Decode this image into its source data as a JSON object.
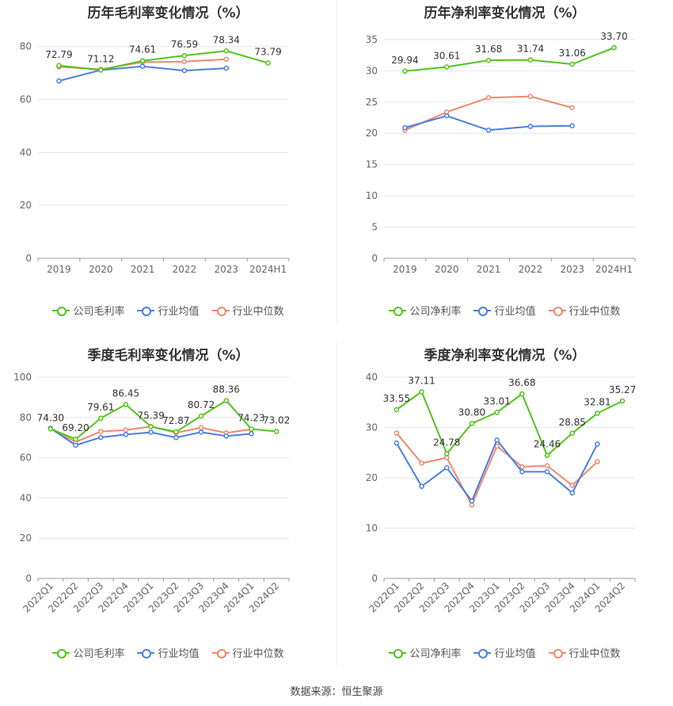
{
  "colors": {
    "company": "#52c41a",
    "industry_avg": "#4a7fe0",
    "industry_median": "#f0886a",
    "grid": "#e6e6e6",
    "axis": "#999999"
  },
  "source_text": "数据来源：恒生聚源",
  "chart_data": [
    {
      "type": "line",
      "title": "历年毛利率变化情况（%）",
      "categories": [
        "2019",
        "2020",
        "2021",
        "2022",
        "2023",
        "2024H1"
      ],
      "ylim": [
        0,
        85
      ],
      "yticks": [
        0,
        20,
        40,
        60,
        80
      ],
      "grid": true,
      "legend_position": "bottom",
      "x_rotated": false,
      "series": [
        {
          "name": "公司毛利率",
          "values": [
            72.79,
            71.12,
            74.61,
            76.59,
            78.34,
            73.79
          ],
          "labels": [
            "72.79",
            "71.12",
            "74.61",
            "76.59",
            "78.34",
            "73.79"
          ]
        },
        {
          "name": "行业均值",
          "values": [
            67.0,
            71.1,
            72.5,
            70.9,
            71.8,
            null
          ]
        },
        {
          "name": "行业中位数",
          "values": [
            72.3,
            71.4,
            74.1,
            74.3,
            75.2,
            null
          ]
        }
      ]
    },
    {
      "type": "line",
      "title": "历年净利率变化情况（%）",
      "categories": [
        "2019",
        "2020",
        "2021",
        "2022",
        "2023",
        "2024H1"
      ],
      "ylim": [
        0,
        36
      ],
      "yticks": [
        0,
        5,
        10,
        15,
        20,
        25,
        30,
        35
      ],
      "grid": true,
      "legend_position": "bottom",
      "x_rotated": false,
      "series": [
        {
          "name": "公司净利率",
          "values": [
            29.94,
            30.61,
            31.68,
            31.74,
            31.06,
            33.7
          ],
          "labels": [
            "29.94",
            "30.61",
            "31.68",
            "31.74",
            "31.06",
            "33.70"
          ]
        },
        {
          "name": "行业均值",
          "values": [
            20.9,
            22.8,
            20.5,
            21.1,
            21.2,
            null
          ]
        },
        {
          "name": "行业中位数",
          "values": [
            20.5,
            23.4,
            25.7,
            25.9,
            24.1,
            null
          ]
        }
      ]
    },
    {
      "type": "line",
      "title": "季度毛利率变化情况（%）",
      "categories": [
        "2022Q1",
        "2022Q2",
        "2022Q3",
        "2022Q4",
        "2023Q1",
        "2023Q2",
        "2023Q3",
        "2023Q4",
        "2024Q1",
        "2024Q2"
      ],
      "ylim": [
        0,
        100
      ],
      "yticks": [
        0,
        20,
        40,
        60,
        80,
        100
      ],
      "grid": true,
      "legend_position": "bottom",
      "x_rotated": true,
      "series": [
        {
          "name": "公司毛利率",
          "values": [
            74.3,
            69.2,
            79.61,
            86.45,
            75.39,
            72.87,
            80.72,
            88.36,
            74.23,
            73.02
          ],
          "labels": [
            "74.30",
            "69.20",
            "79.61",
            "86.45",
            "75.39",
            "72.87",
            "80.72",
            "88.36",
            "74.23",
            "73.02"
          ]
        },
        {
          "name": "行业均值",
          "values": [
            74.6,
            66.2,
            70.1,
            71.5,
            72.6,
            70.0,
            72.7,
            70.7,
            71.9,
            null
          ]
        },
        {
          "name": "行业中位数",
          "values": [
            74.5,
            67.8,
            73.0,
            73.7,
            75.5,
            72.4,
            74.9,
            72.3,
            74.1,
            null
          ]
        }
      ]
    },
    {
      "type": "line",
      "title": "季度净利率变化情况（%）",
      "categories": [
        "2022Q1",
        "2022Q2",
        "2022Q3",
        "2022Q4",
        "2023Q1",
        "2023Q2",
        "2023Q3",
        "2023Q4",
        "2024Q1",
        "2024Q2"
      ],
      "ylim": [
        0,
        40
      ],
      "yticks": [
        0,
        10,
        20,
        30,
        40
      ],
      "grid": true,
      "legend_position": "bottom",
      "x_rotated": true,
      "series": [
        {
          "name": "公司净利率",
          "values": [
            33.55,
            37.11,
            24.78,
            30.8,
            33.01,
            36.68,
            24.46,
            28.85,
            32.81,
            35.27
          ],
          "labels": [
            "33.55",
            "37.11",
            "24.78",
            "30.80",
            "33.01",
            "36.68",
            "24.46",
            "28.85",
            "32.81",
            "35.27"
          ]
        },
        {
          "name": "行业均值",
          "values": [
            26.9,
            18.3,
            22.0,
            15.4,
            27.5,
            21.2,
            21.2,
            17.0,
            26.7,
            null
          ]
        },
        {
          "name": "行业中位数",
          "values": [
            28.9,
            22.9,
            24.0,
            14.6,
            26.3,
            22.2,
            22.4,
            18.5,
            23.2,
            null
          ]
        }
      ]
    }
  ]
}
